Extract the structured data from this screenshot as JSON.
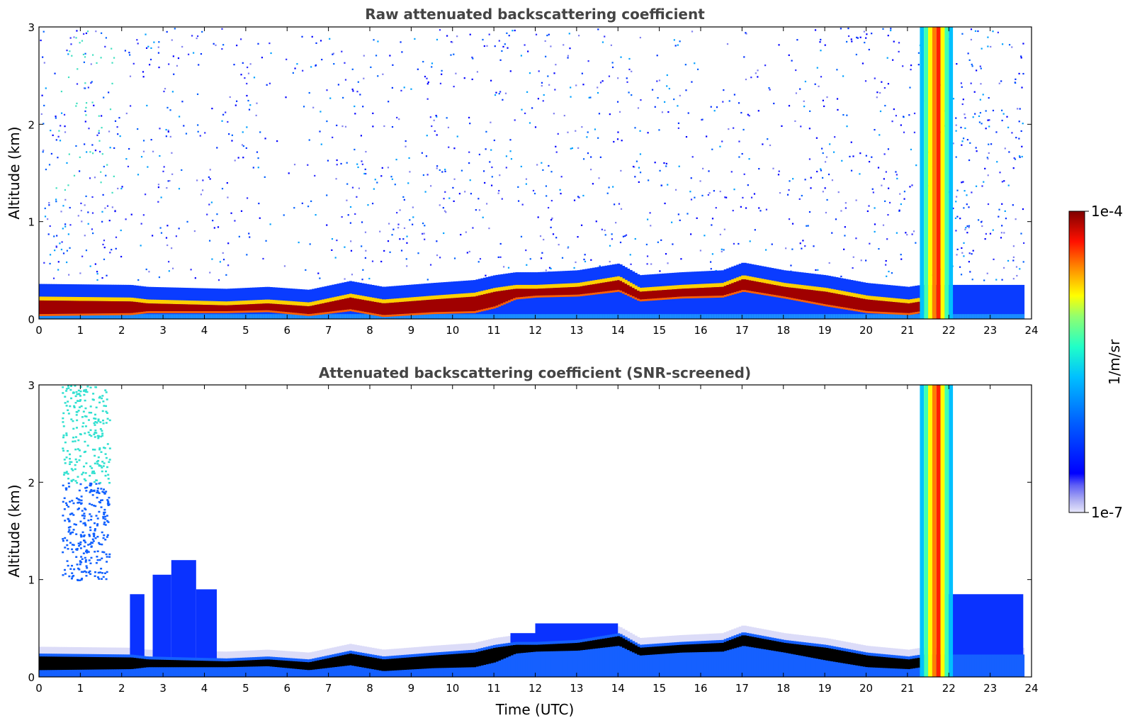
{
  "chart_data": [
    {
      "type": "heatmap",
      "title": "Raw attenuated backscattering coefficient",
      "xlabel": "",
      "ylabel": "Altitude (km)",
      "xlim": [
        0,
        24
      ],
      "ylim": [
        0,
        3
      ],
      "xticks": [
        "0",
        "1",
        "2",
        "3",
        "4",
        "5",
        "6",
        "7",
        "8",
        "9",
        "10",
        "11",
        "12",
        "13",
        "14",
        "15",
        "16",
        "17",
        "18",
        "19",
        "20",
        "21",
        "22",
        "23",
        "24"
      ],
      "yticks": [
        "0",
        "1",
        "2",
        "3"
      ],
      "layer_top_km": [
        [
          0,
          0.21
        ],
        [
          2.2,
          0.2
        ],
        [
          2.6,
          0.18
        ],
        [
          4.5,
          0.16
        ],
        [
          5.5,
          0.18
        ],
        [
          6.5,
          0.15
        ],
        [
          7.5,
          0.24
        ],
        [
          8.3,
          0.18
        ],
        [
          9.5,
          0.22
        ],
        [
          10.5,
          0.25
        ],
        [
          11.0,
          0.3
        ],
        [
          11.5,
          0.33
        ],
        [
          12.0,
          0.33
        ],
        [
          13.0,
          0.35
        ],
        [
          14.0,
          0.42
        ],
        [
          14.5,
          0.3
        ],
        [
          15.5,
          0.33
        ],
        [
          16.5,
          0.35
        ],
        [
          17.0,
          0.43
        ],
        [
          18.0,
          0.35
        ],
        [
          19.0,
          0.3
        ],
        [
          20.0,
          0.22
        ],
        [
          21.0,
          0.18
        ],
        [
          21.3,
          0.2
        ]
      ],
      "layer_bottom_km": [
        [
          0,
          0.05
        ],
        [
          2.2,
          0.06
        ],
        [
          2.6,
          0.08
        ],
        [
          4.5,
          0.08
        ],
        [
          5.5,
          0.09
        ],
        [
          6.5,
          0.05
        ],
        [
          7.5,
          0.1
        ],
        [
          8.3,
          0.04
        ],
        [
          9.5,
          0.07
        ],
        [
          10.5,
          0.08
        ],
        [
          11.0,
          0.13
        ],
        [
          11.5,
          0.22
        ],
        [
          12.0,
          0.24
        ],
        [
          13.0,
          0.25
        ],
        [
          14.0,
          0.3
        ],
        [
          14.5,
          0.2
        ],
        [
          15.5,
          0.23
        ],
        [
          16.5,
          0.24
        ],
        [
          17.0,
          0.3
        ],
        [
          18.0,
          0.23
        ],
        [
          19.0,
          0.15
        ],
        [
          20.0,
          0.08
        ],
        [
          21.0,
          0.06
        ],
        [
          21.3,
          0.08
        ]
      ],
      "noise_region": {
        "x": [
          0,
          23.8
        ],
        "y": [
          0,
          3
        ]
      },
      "cloud_event": {
        "x": [
          21.3,
          22.1
        ],
        "y": [
          0,
          3
        ]
      }
    },
    {
      "type": "heatmap",
      "title": "Attenuated backscattering coefficient (SNR-screened)",
      "xlabel": "Time (UTC)",
      "ylabel": "Altitude (km)",
      "xlim": [
        0,
        24
      ],
      "ylim": [
        0,
        3
      ],
      "xticks": [
        "0",
        "1",
        "2",
        "3",
        "4",
        "5",
        "6",
        "7",
        "8",
        "9",
        "10",
        "11",
        "12",
        "13",
        "14",
        "15",
        "16",
        "17",
        "18",
        "19",
        "20",
        "21",
        "22",
        "23",
        "24"
      ],
      "yticks": [
        "0",
        "1",
        "2",
        "3"
      ],
      "blue_regions": [
        {
          "x": [
            2.2,
            2.55
          ],
          "top": 0.85
        },
        {
          "x": [
            2.75,
            3.2
          ],
          "top": 1.05
        },
        {
          "x": [
            3.2,
            3.8
          ],
          "top": 1.2
        },
        {
          "x": [
            3.8,
            4.3
          ],
          "top": 0.9
        },
        {
          "x": [
            11.4,
            12.0
          ],
          "top": 0.45
        },
        {
          "x": [
            12.0,
            14.0
          ],
          "top": 0.55
        },
        {
          "x": [
            21.9,
            23.8
          ],
          "top": 0.85
        }
      ],
      "cirrus_region": {
        "x": [
          0.55,
          1.7
        ],
        "y": [
          1.0,
          3.0
        ]
      },
      "cloud_event": {
        "x": [
          21.3,
          22.1
        ],
        "y": [
          0,
          3
        ]
      }
    }
  ],
  "colorbar": {
    "label": "1/m/sr",
    "max_label": "1e-4",
    "min_label": "1e-7",
    "colors": [
      "#e6e6fa",
      "#c8c8f5",
      "#a0a0f0",
      "#0000ff",
      "#0040ff",
      "#0080ff",
      "#00c0ff",
      "#00e5e5",
      "#40ffb0",
      "#a0ff60",
      "#ffff00",
      "#ffb000",
      "#ff6000",
      "#ff0000",
      "#c00000",
      "#800000"
    ]
  }
}
